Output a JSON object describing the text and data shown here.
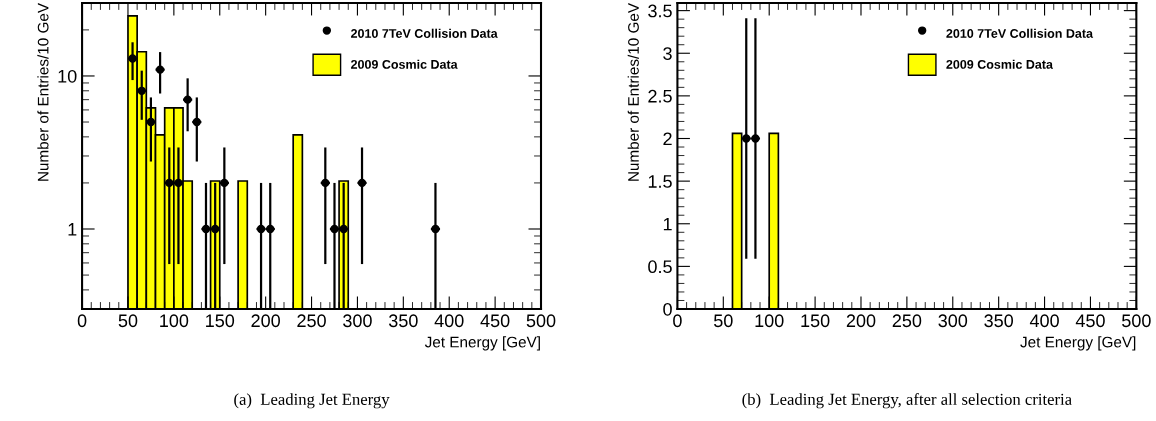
{
  "chart_data": [
    {
      "type": "histogram",
      "xlabel": "Jet Energy [GeV]",
      "ylabel": "Number of Entries/10 GeV",
      "log": "y",
      "xlim": [
        0,
        500
      ],
      "ylim": [
        0.3,
        30
      ],
      "xticks": [
        0,
        50,
        100,
        150,
        200,
        250,
        300,
        350,
        400,
        450,
        500
      ],
      "yticks": [
        1,
        10
      ],
      "grid": false,
      "legend": "top right",
      "marker": "circle",
      "annotations": [
        "(a)  Leading Jet Energy"
      ],
      "series": [
        {
          "name": "2010 7TeV Collision Data",
          "type": "scatter",
          "color": "#000000",
          "x": [
            55,
            65,
            75,
            85,
            95,
            105,
            115,
            125,
            135,
            145,
            155,
            195,
            205,
            265,
            275,
            285,
            305,
            385
          ],
          "values": [
            13,
            8,
            5,
            11,
            2,
            2,
            7,
            5,
            1,
            1,
            2,
            1,
            1,
            2,
            1,
            1,
            2,
            1
          ],
          "errors": [
            3.6,
            2.83,
            2.24,
            3.32,
            1.41,
            1.41,
            2.65,
            2.24,
            [
              0.3,
              2
            ],
            [
              0.3,
              2
            ],
            1.41,
            [
              0.3,
              2
            ],
            [
              0.3,
              2
            ],
            1.41,
            [
              0.3,
              2
            ],
            [
              0.3,
              2
            ],
            1.41,
            [
              0.3,
              2
            ]
          ],
          "xerrors": [
            5,
            5,
            5,
            5,
            5,
            5,
            5,
            5,
            5,
            5,
            5,
            5,
            5,
            5,
            5,
            5,
            5,
            5
          ]
        },
        {
          "name": "2009 Cosmic Data",
          "type": "histogram",
          "color": "#ffff00",
          "bins": [
            50,
            60,
            70,
            80,
            90,
            100,
            110,
            120,
            130,
            140,
            150,
            160,
            170,
            180,
            190,
            200,
            210,
            220,
            230,
            240,
            250,
            260,
            270,
            280,
            290
          ],
          "values": [
            24.7,
            14.4,
            6.18,
            4.12,
            6.18,
            6.18,
            2.06,
            null,
            null,
            2.06,
            null,
            null,
            2.06,
            null,
            null,
            null,
            null,
            null,
            4.12,
            null,
            null,
            null,
            null,
            2.06
          ]
        }
      ]
    },
    {
      "type": "histogram",
      "xlabel": "Jet Energy [GeV]",
      "ylabel": "Number of Entries/10 GeV",
      "xlim": [
        0,
        500
      ],
      "ylim": [
        0,
        3.59
      ],
      "xticks": [
        0,
        50,
        100,
        150,
        200,
        250,
        300,
        350,
        400,
        450,
        500
      ],
      "yticks": [
        0,
        0.5,
        1,
        1.5,
        2,
        2.5,
        3,
        3.5
      ],
      "grid": false,
      "legend": "top right",
      "marker": "circle",
      "annotations": [
        "(b)  Leading Jet Energy, after all selection criteria"
      ],
      "series": [
        {
          "name": "2010 7TeV Collision Data",
          "type": "scatter",
          "color": "#000000",
          "x": [
            75,
            85
          ],
          "values": [
            2,
            2
          ],
          "errors": [
            1.41,
            1.41
          ],
          "xerrors": [
            5,
            5
          ]
        },
        {
          "name": "2009 Cosmic Data",
          "type": "histogram",
          "color": "#ffff00",
          "bins": [
            60,
            70,
            80,
            90,
            100,
            110
          ],
          "values": [
            2.06,
            null,
            null,
            null,
            2.06
          ]
        }
      ]
    }
  ]
}
